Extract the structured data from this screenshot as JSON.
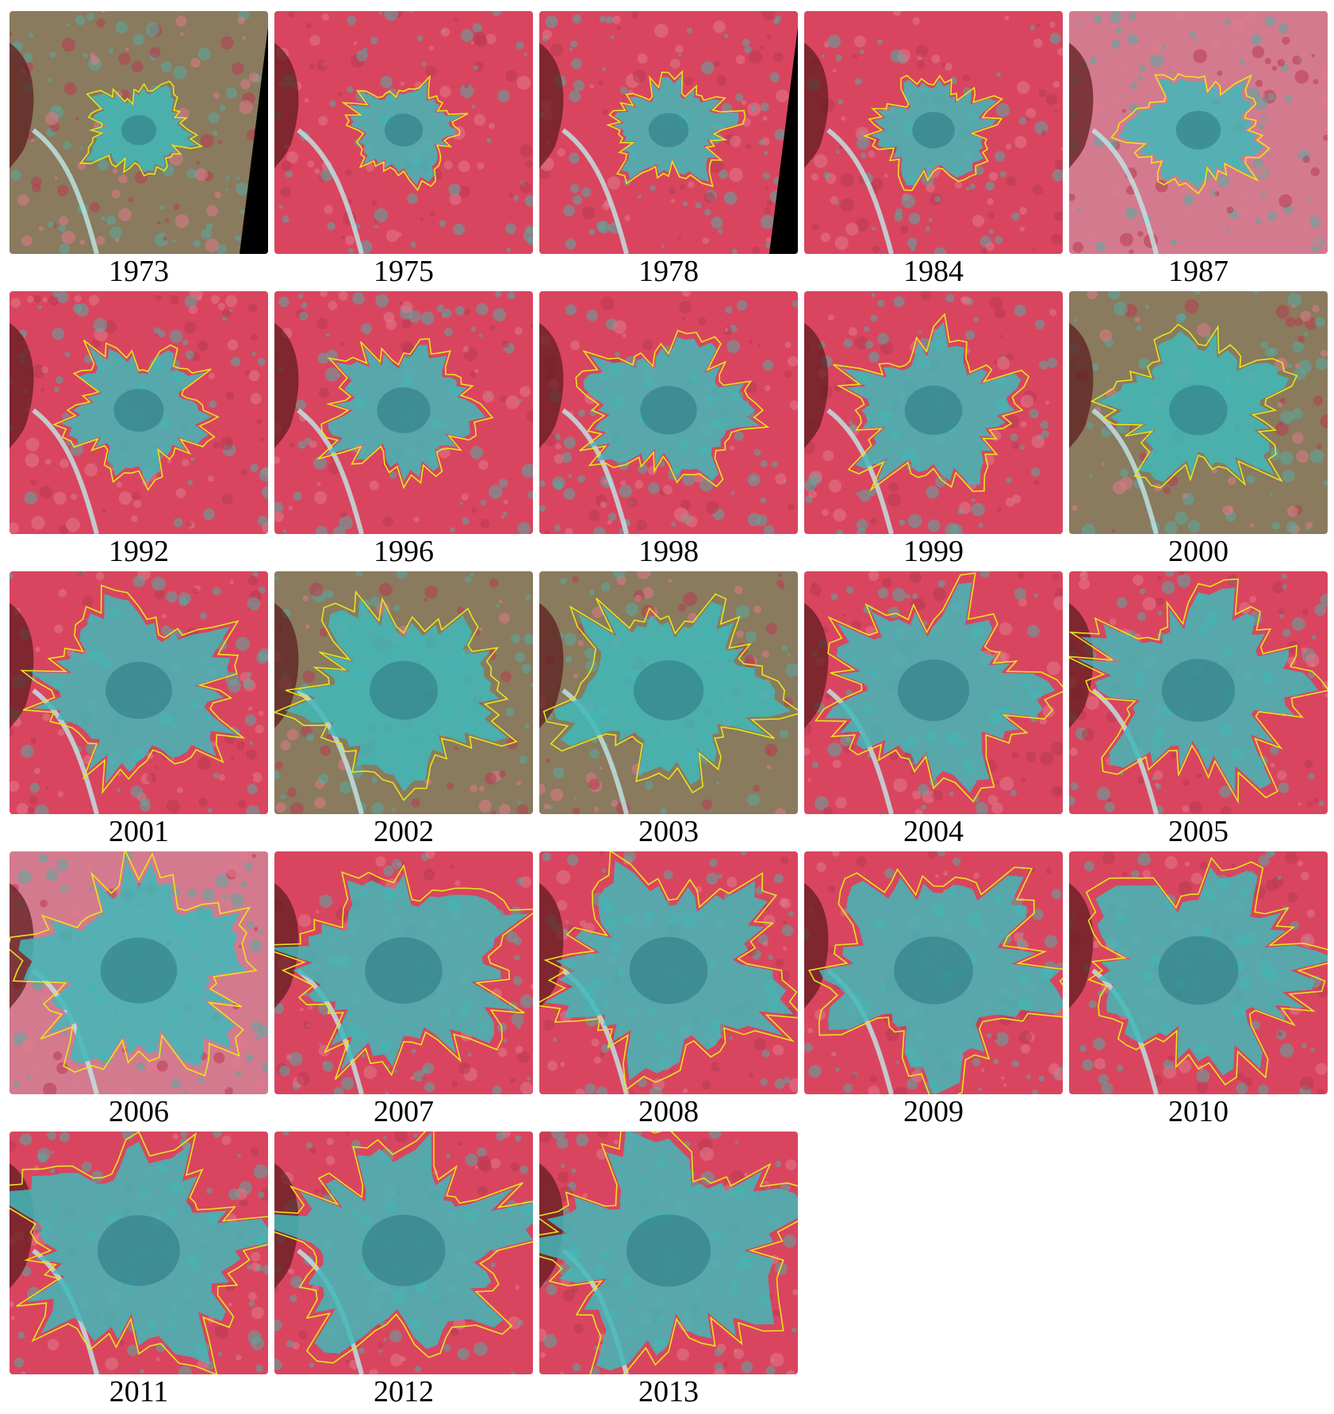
{
  "panels": [
    {
      "year": "1973",
      "palette": "brown",
      "extent": 0.22,
      "black_wedge": true
    },
    {
      "year": "1975",
      "palette": "red",
      "extent": 0.26,
      "black_wedge": false
    },
    {
      "year": "1978",
      "palette": "red",
      "extent": 0.28,
      "black_wedge": true
    },
    {
      "year": "1984",
      "palette": "red",
      "extent": 0.31,
      "black_wedge": false
    },
    {
      "year": "1987",
      "palette": "pink",
      "extent": 0.34,
      "black_wedge": false
    },
    {
      "year": "1992",
      "palette": "red",
      "extent": 0.4,
      "black_wedge": false
    },
    {
      "year": "1996",
      "palette": "red",
      "extent": 0.44,
      "black_wedge": false
    },
    {
      "year": "1998",
      "palette": "red",
      "extent": 0.48,
      "black_wedge": false
    },
    {
      "year": "1999",
      "palette": "red",
      "extent": 0.49,
      "black_wedge": false
    },
    {
      "year": "2000",
      "palette": "brown",
      "extent": 0.5,
      "black_wedge": false
    },
    {
      "year": "2001",
      "palette": "red",
      "extent": 0.6,
      "black_wedge": false
    },
    {
      "year": "2002",
      "palette": "brown",
      "extent": 0.62,
      "black_wedge": false
    },
    {
      "year": "2003",
      "palette": "brown",
      "extent": 0.64,
      "black_wedge": false
    },
    {
      "year": "2004",
      "palette": "red",
      "extent": 0.66,
      "black_wedge": false
    },
    {
      "year": "2005",
      "palette": "red",
      "extent": 0.68,
      "black_wedge": false
    },
    {
      "year": "2006",
      "palette": "pink",
      "extent": 0.72,
      "black_wedge": false
    },
    {
      "year": "2007",
      "palette": "red",
      "extent": 0.73,
      "black_wedge": false
    },
    {
      "year": "2008",
      "palette": "red",
      "extent": 0.74,
      "black_wedge": false
    },
    {
      "year": "2009",
      "palette": "red",
      "extent": 0.75,
      "black_wedge": false
    },
    {
      "year": "2010",
      "palette": "red",
      "extent": 0.76,
      "black_wedge": false
    },
    {
      "year": "2011",
      "palette": "red",
      "extent": 0.79,
      "black_wedge": false
    },
    {
      "year": "2012",
      "palette": "red",
      "extent": 0.8,
      "black_wedge": false
    },
    {
      "year": "2013",
      "palette": "red",
      "extent": 0.81,
      "black_wedge": false
    }
  ],
  "colors": {
    "boundary": "#e6e61a",
    "urban": "#3fb8b8",
    "vegetation": "#d9455f",
    "soil_brown": "#8a7a5e",
    "pink": "#d47a8f",
    "mountain": "#5a1a1a",
    "background": "#ffffff"
  }
}
